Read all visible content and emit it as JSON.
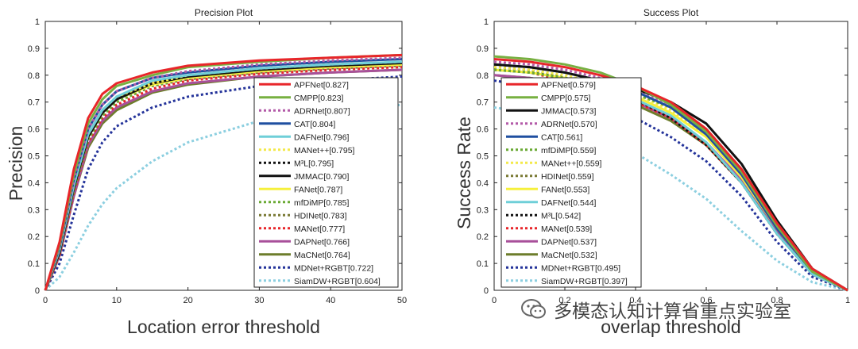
{
  "chart_data": [
    {
      "type": "line",
      "title": "Precision Plot",
      "xlabel": "Location error threshold",
      "ylabel": "Precision",
      "xlim": [
        0,
        50
      ],
      "ylim": [
        0,
        1
      ],
      "x_ticks": [
        "0",
        "10",
        "20",
        "30",
        "40",
        "50"
      ],
      "y_ticks": [
        "0",
        "0.1",
        "0.2",
        "0.3",
        "0.4",
        "0.5",
        "0.6",
        "0.7",
        "0.8",
        "0.9",
        "1"
      ],
      "legend_position": "right",
      "grid": false,
      "x": [
        0,
        2,
        4,
        6,
        8,
        10,
        15,
        20,
        30,
        40,
        50
      ],
      "series": [
        {
          "name": "APFNet[0.827]",
          "color": "#e8262a",
          "style": "solid",
          "values": [
            0,
            0.18,
            0.45,
            0.64,
            0.73,
            0.77,
            0.81,
            0.835,
            0.855,
            0.865,
            0.875
          ]
        },
        {
          "name": "CMPP[0.823]",
          "color": "#77b041",
          "style": "solid",
          "values": [
            0,
            0.17,
            0.43,
            0.62,
            0.71,
            0.76,
            0.8,
            0.83,
            0.85,
            0.865,
            0.875
          ]
        },
        {
          "name": "ADRNet[0.807]",
          "color": "#b35aa8",
          "style": "dotted",
          "values": [
            0,
            0.16,
            0.41,
            0.6,
            0.69,
            0.74,
            0.79,
            0.815,
            0.84,
            0.855,
            0.865
          ]
        },
        {
          "name": "CAT[0.804]",
          "color": "#1f4fa0",
          "style": "solid",
          "values": [
            0,
            0.16,
            0.41,
            0.6,
            0.69,
            0.74,
            0.79,
            0.81,
            0.835,
            0.85,
            0.86
          ]
        },
        {
          "name": "DAFNet[0.796]",
          "color": "#6fcfd8",
          "style": "solid",
          "values": [
            0,
            0.15,
            0.39,
            0.58,
            0.67,
            0.72,
            0.78,
            0.8,
            0.825,
            0.84,
            0.85
          ]
        },
        {
          "name": "MANet++[0.795]",
          "color": "#f3e94a",
          "style": "dotted",
          "values": [
            0,
            0.15,
            0.39,
            0.58,
            0.67,
            0.72,
            0.77,
            0.8,
            0.825,
            0.84,
            0.85
          ]
        },
        {
          "name": "M³L[0.795]",
          "color": "#111111",
          "style": "dotted",
          "values": [
            0,
            0.15,
            0.39,
            0.58,
            0.67,
            0.72,
            0.77,
            0.8,
            0.825,
            0.84,
            0.848
          ]
        },
        {
          "name": "JMMAC[0.790]",
          "color": "#111111",
          "style": "solid",
          "values": [
            0,
            0.14,
            0.38,
            0.57,
            0.66,
            0.71,
            0.77,
            0.795,
            0.82,
            0.835,
            0.845
          ]
        },
        {
          "name": "FANet[0.787]",
          "color": "#f6f03c",
          "style": "solid",
          "values": [
            0,
            0.14,
            0.38,
            0.57,
            0.66,
            0.71,
            0.765,
            0.79,
            0.815,
            0.83,
            0.84
          ]
        },
        {
          "name": "mfDiMP[0.785]",
          "color": "#6aaa34",
          "style": "dotted",
          "values": [
            0,
            0.14,
            0.37,
            0.56,
            0.65,
            0.7,
            0.76,
            0.79,
            0.815,
            0.83,
            0.84
          ]
        },
        {
          "name": "HDINet[0.783]",
          "color": "#7a7a34",
          "style": "dotted",
          "values": [
            0,
            0.14,
            0.37,
            0.56,
            0.65,
            0.7,
            0.76,
            0.785,
            0.81,
            0.825,
            0.835
          ]
        },
        {
          "name": "MANet[0.777]",
          "color": "#e8262a",
          "style": "dotted",
          "values": [
            0,
            0.13,
            0.36,
            0.55,
            0.64,
            0.69,
            0.75,
            0.78,
            0.805,
            0.82,
            0.83
          ]
        },
        {
          "name": "DAPNet[0.766]",
          "color": "#a8509a",
          "style": "solid",
          "values": [
            0,
            0.13,
            0.35,
            0.54,
            0.63,
            0.68,
            0.74,
            0.77,
            0.795,
            0.81,
            0.82
          ]
        },
        {
          "name": "MaCNet[0.764]",
          "color": "#6d7d2b",
          "style": "solid",
          "values": [
            0,
            0.13,
            0.35,
            0.53,
            0.62,
            0.67,
            0.735,
            0.765,
            0.795,
            0.81,
            0.82
          ]
        },
        {
          "name": "MDNet+RGBT[0.722]",
          "color": "#24339a",
          "style": "dotted",
          "values": [
            0,
            0.1,
            0.28,
            0.45,
            0.55,
            0.61,
            0.68,
            0.72,
            0.76,
            0.78,
            0.795
          ]
        },
        {
          "name": "SiamDW+RGBT[0.604]",
          "color": "#8ccfe0",
          "style": "dotted",
          "values": [
            0,
            0.05,
            0.14,
            0.24,
            0.32,
            0.38,
            0.48,
            0.55,
            0.63,
            0.67,
            0.69
          ]
        }
      ]
    },
    {
      "type": "line",
      "title": "Success Plot",
      "xlabel": "overlap threshold",
      "ylabel": "Success Rate",
      "xlim": [
        0,
        1
      ],
      "ylim": [
        0,
        1
      ],
      "x_ticks": [
        "0",
        "0.2",
        "0.4",
        "0.6",
        "0.8",
        "1"
      ],
      "y_ticks": [
        "0",
        "0.1",
        "0.2",
        "0.3",
        "0.4",
        "0.5",
        "0.6",
        "0.7",
        "0.8",
        "0.9",
        "1"
      ],
      "legend_position": "left",
      "grid": false,
      "x": [
        0,
        0.1,
        0.2,
        0.3,
        0.4,
        0.5,
        0.6,
        0.7,
        0.8,
        0.9,
        1.0
      ],
      "series": [
        {
          "name": "APFNet[0.579]",
          "color": "#e8262a",
          "style": "solid",
          "values": [
            0.86,
            0.85,
            0.83,
            0.8,
            0.76,
            0.7,
            0.6,
            0.45,
            0.25,
            0.08,
            0.0
          ]
        },
        {
          "name": "CMPP[0.575]",
          "color": "#77b041",
          "style": "solid",
          "values": [
            0.87,
            0.86,
            0.84,
            0.81,
            0.76,
            0.69,
            0.59,
            0.44,
            0.24,
            0.07,
            0.0
          ]
        },
        {
          "name": "JMMAC[0.573]",
          "color": "#111111",
          "style": "solid",
          "values": [
            0.84,
            0.83,
            0.81,
            0.78,
            0.75,
            0.7,
            0.62,
            0.47,
            0.26,
            0.08,
            0.0
          ]
        },
        {
          "name": "ADRNet[0.570]",
          "color": "#b35aa8",
          "style": "dotted",
          "values": [
            0.85,
            0.84,
            0.82,
            0.79,
            0.75,
            0.69,
            0.59,
            0.44,
            0.24,
            0.07,
            0.0
          ]
        },
        {
          "name": "CAT[0.561]",
          "color": "#1f4fa0",
          "style": "solid",
          "values": [
            0.84,
            0.83,
            0.81,
            0.78,
            0.74,
            0.68,
            0.58,
            0.43,
            0.23,
            0.07,
            0.0
          ]
        },
        {
          "name": "mfDiMP[0.559]",
          "color": "#6aaa34",
          "style": "dotted",
          "values": [
            0.82,
            0.81,
            0.79,
            0.77,
            0.73,
            0.68,
            0.59,
            0.45,
            0.25,
            0.08,
            0.0
          ]
        },
        {
          "name": "MANet++[0.559]",
          "color": "#f3e94a",
          "style": "dotted",
          "values": [
            0.83,
            0.82,
            0.8,
            0.77,
            0.73,
            0.67,
            0.58,
            0.43,
            0.23,
            0.07,
            0.0
          ]
        },
        {
          "name": "HDINet[0.559]",
          "color": "#7a7a34",
          "style": "dotted",
          "values": [
            0.82,
            0.81,
            0.79,
            0.77,
            0.73,
            0.68,
            0.58,
            0.44,
            0.24,
            0.07,
            0.0
          ]
        },
        {
          "name": "FANet[0.553]",
          "color": "#f6f03c",
          "style": "solid",
          "values": [
            0.82,
            0.81,
            0.79,
            0.76,
            0.72,
            0.66,
            0.57,
            0.42,
            0.23,
            0.07,
            0.0
          ]
        },
        {
          "name": "DAFNet[0.544]",
          "color": "#6fcfd8",
          "style": "solid",
          "values": [
            0.82,
            0.81,
            0.79,
            0.76,
            0.71,
            0.65,
            0.55,
            0.4,
            0.21,
            0.06,
            0.0
          ]
        },
        {
          "name": "M³L[0.542]",
          "color": "#111111",
          "style": "dotted",
          "values": [
            0.83,
            0.82,
            0.79,
            0.76,
            0.71,
            0.64,
            0.54,
            0.4,
            0.21,
            0.06,
            0.0
          ]
        },
        {
          "name": "MANet[0.539]",
          "color": "#e8262a",
          "style": "dotted",
          "values": [
            0.82,
            0.81,
            0.78,
            0.75,
            0.7,
            0.64,
            0.54,
            0.4,
            0.21,
            0.06,
            0.0
          ]
        },
        {
          "name": "DAPNet[0.537]",
          "color": "#a8509a",
          "style": "solid",
          "values": [
            0.8,
            0.79,
            0.77,
            0.74,
            0.7,
            0.64,
            0.55,
            0.41,
            0.22,
            0.06,
            0.0
          ]
        },
        {
          "name": "MaCNet[0.532]",
          "color": "#6d7d2b",
          "style": "solid",
          "values": [
            0.8,
            0.79,
            0.77,
            0.74,
            0.69,
            0.63,
            0.54,
            0.4,
            0.21,
            0.06,
            0.0
          ]
        },
        {
          "name": "MDNet+RGBT[0.495]",
          "color": "#24339a",
          "style": "dotted",
          "values": [
            0.78,
            0.76,
            0.73,
            0.69,
            0.64,
            0.57,
            0.48,
            0.35,
            0.18,
            0.05,
            0.0
          ]
        },
        {
          "name": "SiamDW+RGBT[0.397]",
          "color": "#8ccfe0",
          "style": "dotted",
          "values": [
            0.68,
            0.66,
            0.62,
            0.57,
            0.51,
            0.43,
            0.34,
            0.22,
            0.11,
            0.03,
            0.0
          ]
        }
      ]
    }
  ],
  "watermark": {
    "icon": "wechat-icon",
    "text": "多模态认知计算省重点实验室"
  }
}
